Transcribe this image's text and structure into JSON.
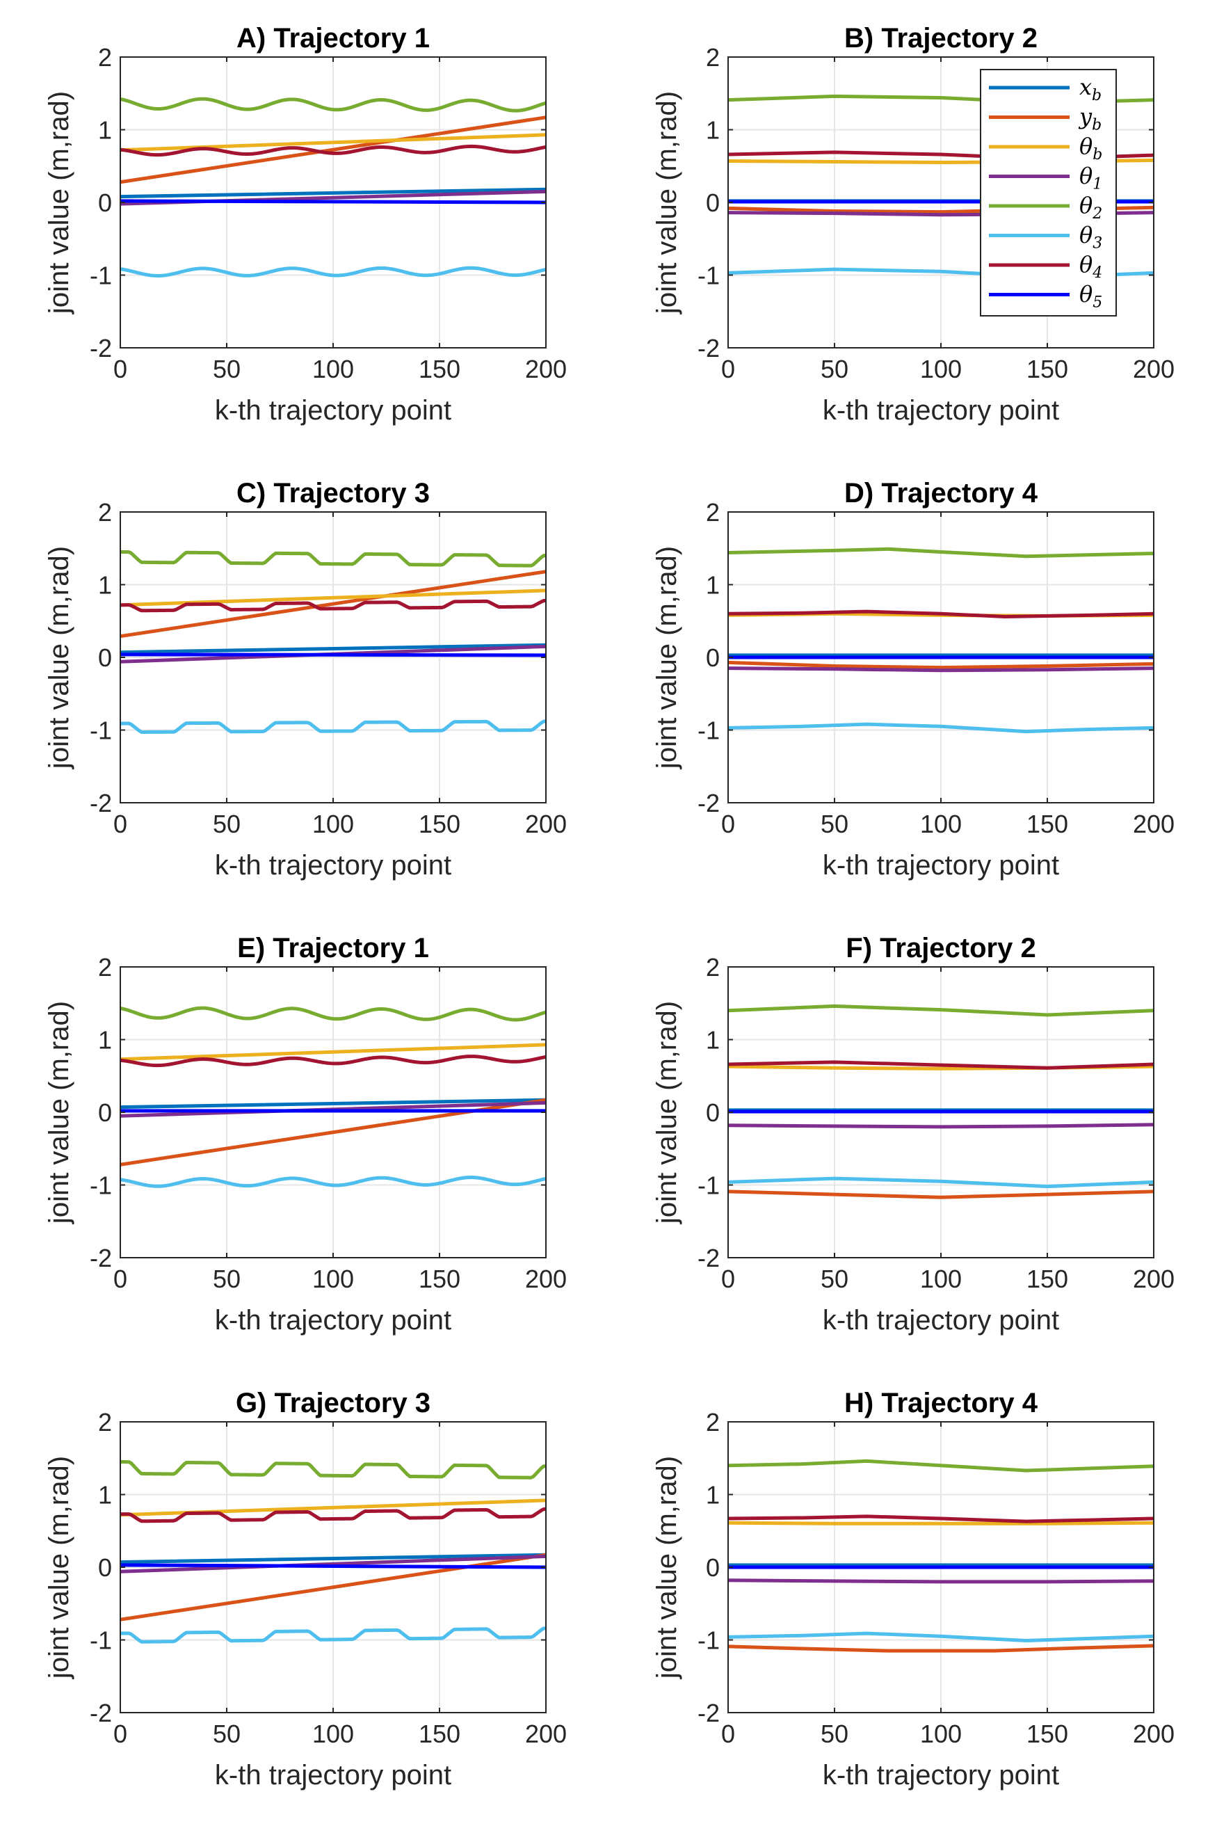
{
  "figure": {
    "xlabel": "k-th trajectory point",
    "ylabel": "joint value (m,rad)",
    "xlim": [
      0,
      200
    ],
    "ylim": [
      -2,
      2
    ],
    "xticks": [
      0,
      50,
      100,
      150,
      200
    ],
    "yticks": [
      -2,
      -1,
      0,
      1,
      2
    ],
    "grid": true
  },
  "series_styles": [
    {
      "key": "x_b",
      "base": "x",
      "sub": "b",
      "color": "#0072BD"
    },
    {
      "key": "y_b",
      "base": "y",
      "sub": "b",
      "color": "#D95319"
    },
    {
      "key": "theta_b",
      "base": "θ",
      "sub": "b",
      "color": "#EDB120"
    },
    {
      "key": "theta_1",
      "base": "θ",
      "sub": "1",
      "color": "#7E2F8E"
    },
    {
      "key": "theta_2",
      "base": "θ",
      "sub": "2",
      "color": "#77AC30"
    },
    {
      "key": "theta_3",
      "base": "θ",
      "sub": "3",
      "color": "#4DBEEE"
    },
    {
      "key": "theta_4",
      "base": "θ",
      "sub": "4",
      "color": "#A2142F"
    },
    {
      "key": "theta_5",
      "base": "θ",
      "sub": "5",
      "color": "#0000FF"
    }
  ],
  "legend": {
    "panel": 1,
    "placement": "top-right"
  },
  "chart_data": [
    {
      "type": "line",
      "title": "A) Trajectory 1",
      "x": [
        0,
        200
      ],
      "series": [
        {
          "key": "x_b",
          "kind": "line",
          "from": 0.08,
          "to": 0.18
        },
        {
          "key": "y_b",
          "kind": "line",
          "from": 0.28,
          "to": 1.17
        },
        {
          "key": "theta_b",
          "kind": "line",
          "from": 0.72,
          "to": 0.93
        },
        {
          "key": "theta_1",
          "kind": "line",
          "from": -0.02,
          "to": 0.15
        },
        {
          "key": "theta_2",
          "kind": "wave",
          "trend_from": 1.36,
          "trend_to": 1.33,
          "amp": 0.07,
          "period": 42,
          "phase": 0.5
        },
        {
          "key": "theta_3",
          "kind": "wave",
          "trend_from": -0.96,
          "trend_to": -0.95,
          "amp": 0.05,
          "period": 42,
          "phase": 0.5
        },
        {
          "key": "theta_4",
          "kind": "wave",
          "trend_from": 0.69,
          "trend_to": 0.74,
          "amp": 0.04,
          "period": 42,
          "phase": 0.5
        },
        {
          "key": "theta_5",
          "kind": "line",
          "from": 0.02,
          "to": 0.0
        }
      ]
    },
    {
      "type": "line",
      "title": "B) Trajectory 2",
      "x": [
        0,
        200
      ],
      "series": [
        {
          "key": "x_b",
          "kind": "line",
          "from": 0.02,
          "to": 0.02
        },
        {
          "key": "y_b",
          "kind": "points",
          "x": [
            0,
            50,
            100,
            150,
            200
          ],
          "y": [
            -0.08,
            -0.12,
            -0.13,
            -0.1,
            -0.07
          ]
        },
        {
          "key": "theta_b",
          "kind": "points",
          "x": [
            0,
            50,
            100,
            150,
            200
          ],
          "y": [
            0.57,
            0.56,
            0.55,
            0.56,
            0.58
          ]
        },
        {
          "key": "theta_1",
          "kind": "points",
          "x": [
            0,
            50,
            100,
            150,
            200
          ],
          "y": [
            -0.14,
            -0.15,
            -0.17,
            -0.16,
            -0.14
          ]
        },
        {
          "key": "theta_2",
          "kind": "points",
          "x": [
            0,
            50,
            100,
            150,
            200
          ],
          "y": [
            1.41,
            1.46,
            1.44,
            1.37,
            1.41
          ]
        },
        {
          "key": "theta_3",
          "kind": "points",
          "x": [
            0,
            50,
            100,
            150,
            200
          ],
          "y": [
            -0.97,
            -0.92,
            -0.95,
            -1.03,
            -0.97
          ]
        },
        {
          "key": "theta_4",
          "kind": "points",
          "x": [
            0,
            50,
            100,
            150,
            200
          ],
          "y": [
            0.66,
            0.69,
            0.66,
            0.6,
            0.65
          ]
        },
        {
          "key": "theta_5",
          "kind": "line",
          "from": 0.01,
          "to": 0.01
        }
      ]
    },
    {
      "type": "line",
      "title": "C) Trajectory 3",
      "x": [
        0,
        200
      ],
      "series": [
        {
          "key": "x_b",
          "kind": "line",
          "from": 0.07,
          "to": 0.17
        },
        {
          "key": "y_b",
          "kind": "line",
          "from": 0.29,
          "to": 1.18
        },
        {
          "key": "theta_b",
          "kind": "line",
          "from": 0.72,
          "to": 0.92
        },
        {
          "key": "theta_1",
          "kind": "line",
          "from": -0.06,
          "to": 0.15
        },
        {
          "key": "theta_2",
          "kind": "step",
          "trend_from": 1.38,
          "trend_to": 1.33,
          "amp": 0.07,
          "period": 42,
          "phase": 0.5
        },
        {
          "key": "theta_3",
          "kind": "step",
          "trend_from": -0.97,
          "trend_to": -0.94,
          "amp": 0.06,
          "period": 42,
          "phase": 0.5
        },
        {
          "key": "theta_4",
          "kind": "step",
          "trend_from": 0.68,
          "trend_to": 0.74,
          "amp": 0.04,
          "period": 42,
          "phase": 0.5
        },
        {
          "key": "theta_5",
          "kind": "line",
          "from": 0.04,
          "to": 0.03
        }
      ]
    },
    {
      "type": "line",
      "title": "D) Trajectory 4",
      "x": [
        0,
        200
      ],
      "series": [
        {
          "key": "x_b",
          "kind": "line",
          "from": 0.03,
          "to": 0.03
        },
        {
          "key": "y_b",
          "kind": "points",
          "x": [
            0,
            50,
            100,
            150,
            200
          ],
          "y": [
            -0.07,
            -0.12,
            -0.14,
            -0.12,
            -0.09
          ]
        },
        {
          "key": "theta_b",
          "kind": "points",
          "x": [
            0,
            50,
            100,
            150,
            200
          ],
          "y": [
            0.58,
            0.6,
            0.58,
            0.57,
            0.58
          ]
        },
        {
          "key": "theta_1",
          "kind": "points",
          "x": [
            0,
            50,
            100,
            150,
            200
          ],
          "y": [
            -0.15,
            -0.16,
            -0.18,
            -0.17,
            -0.15
          ]
        },
        {
          "key": "theta_2",
          "kind": "points",
          "x": [
            0,
            50,
            75,
            100,
            140,
            170,
            200
          ],
          "y": [
            1.44,
            1.47,
            1.49,
            1.45,
            1.39,
            1.41,
            1.43
          ]
        },
        {
          "key": "theta_3",
          "kind": "points",
          "x": [
            0,
            35,
            65,
            100,
            140,
            170,
            200
          ],
          "y": [
            -0.97,
            -0.95,
            -0.92,
            -0.95,
            -1.02,
            -0.99,
            -0.97
          ]
        },
        {
          "key": "theta_4",
          "kind": "points",
          "x": [
            0,
            35,
            65,
            100,
            130,
            170,
            200
          ],
          "y": [
            0.6,
            0.61,
            0.63,
            0.6,
            0.56,
            0.58,
            0.6
          ]
        },
        {
          "key": "theta_5",
          "kind": "line",
          "from": 0.0,
          "to": 0.0
        }
      ]
    },
    {
      "type": "line",
      "title": "E) Trajectory 1",
      "x": [
        0,
        200
      ],
      "series": [
        {
          "key": "x_b",
          "kind": "line",
          "from": 0.07,
          "to": 0.17
        },
        {
          "key": "y_b",
          "kind": "line",
          "from": -0.72,
          "to": 0.17
        },
        {
          "key": "theta_b",
          "kind": "line",
          "from": 0.73,
          "to": 0.93
        },
        {
          "key": "theta_1",
          "kind": "line",
          "from": -0.05,
          "to": 0.13
        },
        {
          "key": "theta_2",
          "kind": "wave",
          "trend_from": 1.37,
          "trend_to": 1.34,
          "amp": 0.07,
          "period": 42,
          "phase": 0.5
        },
        {
          "key": "theta_3",
          "kind": "wave",
          "trend_from": -0.97,
          "trend_to": -0.94,
          "amp": 0.05,
          "period": 42,
          "phase": 0.5
        },
        {
          "key": "theta_4",
          "kind": "wave",
          "trend_from": 0.68,
          "trend_to": 0.74,
          "amp": 0.04,
          "period": 42,
          "phase": 0.5
        },
        {
          "key": "theta_5",
          "kind": "line",
          "from": 0.02,
          "to": 0.02
        }
      ]
    },
    {
      "type": "line",
      "title": "F) Trajectory 2",
      "x": [
        0,
        200
      ],
      "series": [
        {
          "key": "x_b",
          "kind": "line",
          "from": 0.03,
          "to": 0.03
        },
        {
          "key": "y_b",
          "kind": "points",
          "x": [
            0,
            50,
            100,
            150,
            200
          ],
          "y": [
            -1.09,
            -1.13,
            -1.17,
            -1.13,
            -1.09
          ]
        },
        {
          "key": "theta_b",
          "kind": "points",
          "x": [
            0,
            50,
            100,
            150,
            200
          ],
          "y": [
            0.63,
            0.61,
            0.6,
            0.61,
            0.63
          ]
        },
        {
          "key": "theta_1",
          "kind": "points",
          "x": [
            0,
            50,
            100,
            150,
            200
          ],
          "y": [
            -0.18,
            -0.19,
            -0.2,
            -0.19,
            -0.17
          ]
        },
        {
          "key": "theta_2",
          "kind": "points",
          "x": [
            0,
            50,
            100,
            150,
            200
          ],
          "y": [
            1.4,
            1.46,
            1.41,
            1.34,
            1.4
          ]
        },
        {
          "key": "theta_3",
          "kind": "points",
          "x": [
            0,
            50,
            100,
            150,
            200
          ],
          "y": [
            -0.96,
            -0.91,
            -0.95,
            -1.02,
            -0.96
          ]
        },
        {
          "key": "theta_4",
          "kind": "points",
          "x": [
            0,
            50,
            100,
            150,
            200
          ],
          "y": [
            0.66,
            0.69,
            0.65,
            0.61,
            0.66
          ]
        },
        {
          "key": "theta_5",
          "kind": "line",
          "from": 0.01,
          "to": 0.01
        }
      ]
    },
    {
      "type": "line",
      "title": "G) Trajectory 3",
      "x": [
        0,
        200
      ],
      "series": [
        {
          "key": "x_b",
          "kind": "line",
          "from": 0.07,
          "to": 0.17
        },
        {
          "key": "y_b",
          "kind": "line",
          "from": -0.72,
          "to": 0.17
        },
        {
          "key": "theta_b",
          "kind": "line",
          "from": 0.72,
          "to": 0.92
        },
        {
          "key": "theta_1",
          "kind": "line",
          "from": -0.06,
          "to": 0.15
        },
        {
          "key": "theta_2",
          "kind": "step",
          "trend_from": 1.37,
          "trend_to": 1.31,
          "amp": 0.08,
          "period": 42,
          "phase": 0.5
        },
        {
          "key": "theta_3",
          "kind": "step",
          "trend_from": -0.97,
          "trend_to": -0.9,
          "amp": 0.06,
          "period": 42,
          "phase": 0.5
        },
        {
          "key": "theta_4",
          "kind": "step",
          "trend_from": 0.68,
          "trend_to": 0.75,
          "amp": 0.05,
          "period": 42,
          "phase": 0.5
        },
        {
          "key": "theta_5",
          "kind": "line",
          "from": 0.03,
          "to": 0.0
        }
      ]
    },
    {
      "type": "line",
      "title": "H) Trajectory 4",
      "x": [
        0,
        200
      ],
      "series": [
        {
          "key": "x_b",
          "kind": "line",
          "from": 0.03,
          "to": 0.03
        },
        {
          "key": "y_b",
          "kind": "points",
          "x": [
            0,
            35,
            75,
            125,
            165,
            200
          ],
          "y": [
            -1.09,
            -1.12,
            -1.15,
            -1.15,
            -1.11,
            -1.08
          ]
        },
        {
          "key": "theta_b",
          "kind": "points",
          "x": [
            0,
            50,
            100,
            150,
            200
          ],
          "y": [
            0.61,
            0.6,
            0.6,
            0.6,
            0.61
          ]
        },
        {
          "key": "theta_1",
          "kind": "points",
          "x": [
            0,
            50,
            100,
            150,
            200
          ],
          "y": [
            -0.18,
            -0.19,
            -0.2,
            -0.2,
            -0.19
          ]
        },
        {
          "key": "theta_2",
          "kind": "points",
          "x": [
            0,
            35,
            65,
            100,
            140,
            170,
            200
          ],
          "y": [
            1.4,
            1.42,
            1.46,
            1.4,
            1.33,
            1.36,
            1.39
          ]
        },
        {
          "key": "theta_3",
          "kind": "points",
          "x": [
            0,
            35,
            65,
            100,
            140,
            170,
            200
          ],
          "y": [
            -0.96,
            -0.94,
            -0.91,
            -0.95,
            -1.01,
            -0.98,
            -0.95
          ]
        },
        {
          "key": "theta_4",
          "kind": "points",
          "x": [
            0,
            35,
            65,
            100,
            140,
            170,
            200
          ],
          "y": [
            0.67,
            0.68,
            0.7,
            0.67,
            0.63,
            0.65,
            0.67
          ]
        },
        {
          "key": "theta_5",
          "kind": "line",
          "from": 0.0,
          "to": 0.0
        }
      ]
    }
  ]
}
